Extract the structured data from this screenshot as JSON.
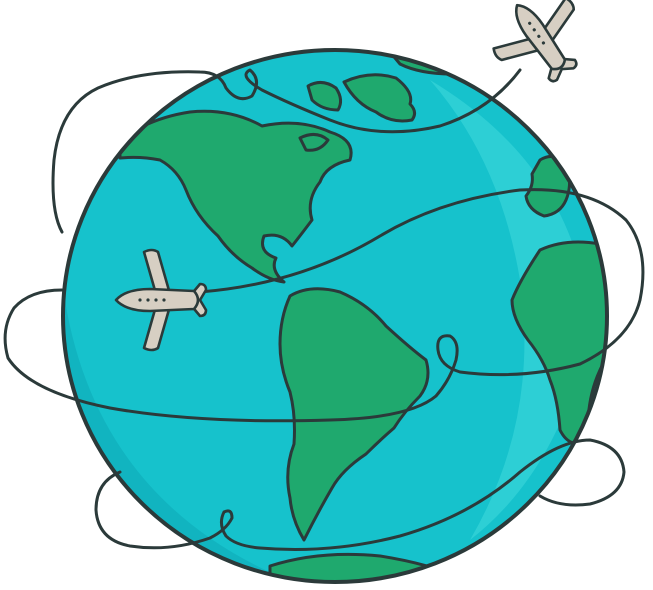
{
  "illustration": {
    "subject": "globe-with-airplanes",
    "colors": {
      "ocean": "#16C2CC",
      "ocean_shade": "#10AEBB",
      "ocean_highlight": "#35D3D8",
      "land": "#1FA96E",
      "land_light": "#28BC7C",
      "outline": "#2B3A3A",
      "plane": "#D7CFC3",
      "background": "#FFFFFF"
    },
    "elements": {
      "globe": "globe",
      "continents": [
        "north-america",
        "south-america",
        "greenland",
        "europe",
        "africa",
        "antarctica"
      ],
      "airplanes": [
        "airplane-top-right",
        "airplane-left"
      ],
      "flight_paths": [
        "flight-path-top",
        "flight-path-middle",
        "flight-path-bottom"
      ]
    }
  }
}
